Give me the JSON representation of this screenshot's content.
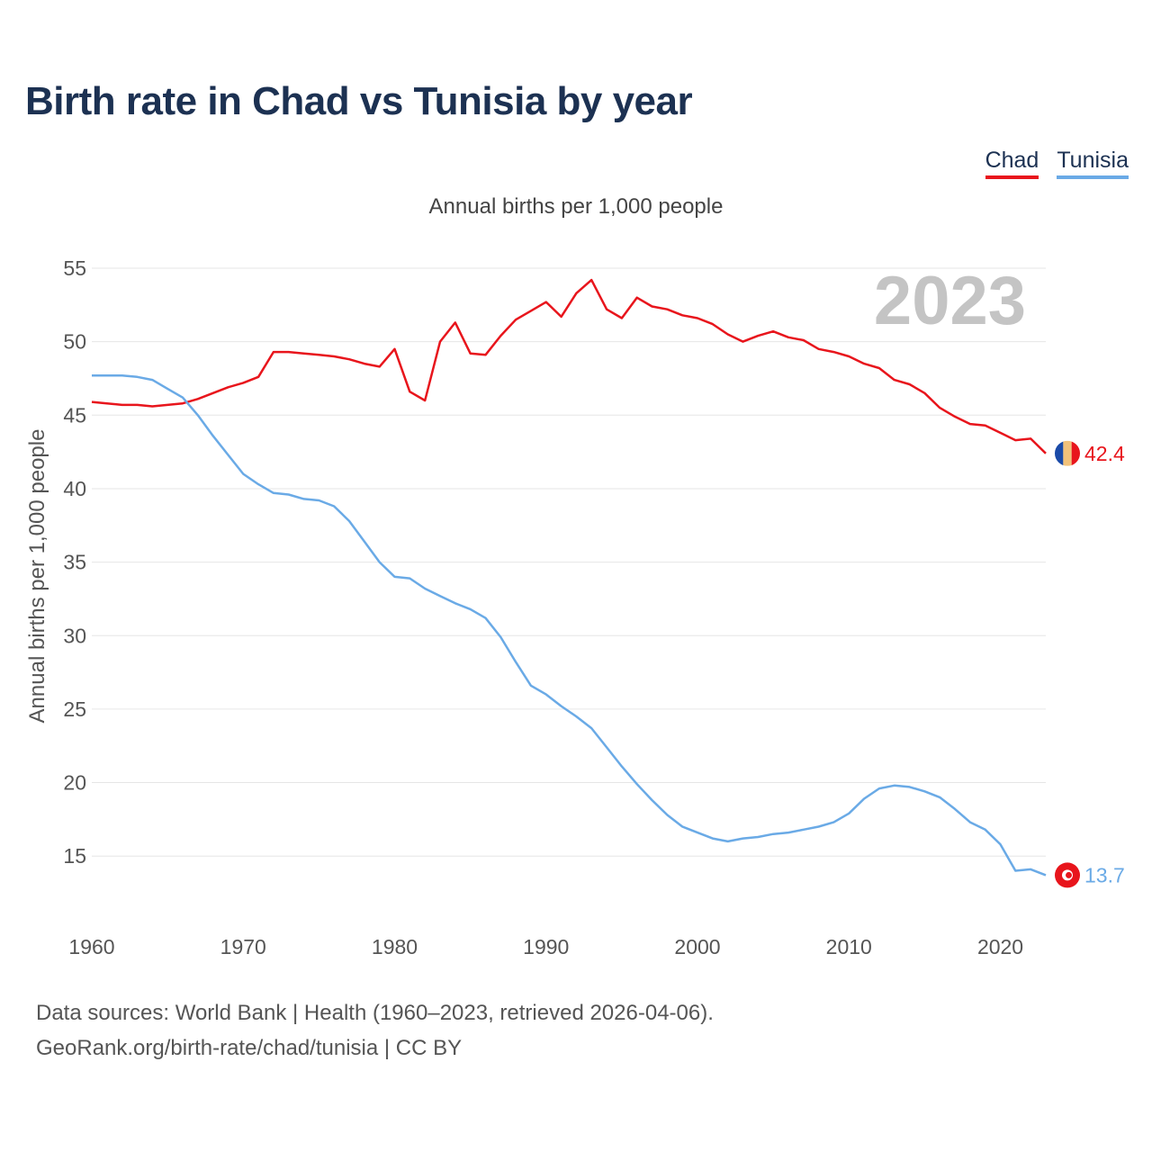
{
  "title": "Birth rate in Chad vs Tunisia by year",
  "subtitle": "Annual births per 1,000 people",
  "year_watermark": "2023",
  "legend": [
    {
      "label": "Chad",
      "color": "#e8151c"
    },
    {
      "label": "Tunisia",
      "color": "#6aaae6"
    }
  ],
  "source": {
    "line1": "Data sources: World Bank | Health (1960–2023, retrieved 2026-04-06).",
    "line2": "GeoRank.org/birth-rate/chad/tunisia | CC BY"
  },
  "chart_data": {
    "type": "line",
    "title": "Birth rate in Chad vs Tunisia by year",
    "ylabel": "Annual births per 1,000 people",
    "xlabel": "",
    "xlim": [
      1960,
      2023
    ],
    "ylim": [
      12,
      56
    ],
    "x_ticks": [
      1960,
      1970,
      1980,
      1990,
      2000,
      2010,
      2020
    ],
    "y_ticks": [
      15,
      20,
      25,
      30,
      35,
      40,
      45,
      50,
      55
    ],
    "grid": true,
    "legend_position": "top-right",
    "x": [
      1960,
      1961,
      1962,
      1963,
      1964,
      1965,
      1966,
      1967,
      1968,
      1969,
      1970,
      1971,
      1972,
      1973,
      1974,
      1975,
      1976,
      1977,
      1978,
      1979,
      1980,
      1981,
      1982,
      1983,
      1984,
      1985,
      1986,
      1987,
      1988,
      1989,
      1990,
      1991,
      1992,
      1993,
      1994,
      1995,
      1996,
      1997,
      1998,
      1999,
      2000,
      2001,
      2002,
      2003,
      2004,
      2005,
      2006,
      2007,
      2008,
      2009,
      2010,
      2011,
      2012,
      2013,
      2014,
      2015,
      2016,
      2017,
      2018,
      2019,
      2020,
      2021,
      2022,
      2023
    ],
    "series": [
      {
        "name": "Chad",
        "color": "#e8151c",
        "end_label": "42.4",
        "values": [
          45.9,
          45.8,
          45.7,
          45.7,
          45.6,
          45.7,
          45.8,
          46.1,
          46.5,
          46.9,
          47.2,
          47.6,
          49.3,
          49.3,
          49.2,
          49.1,
          49.0,
          48.8,
          48.5,
          48.3,
          49.5,
          46.6,
          46.0,
          50.0,
          51.3,
          49.2,
          49.1,
          50.4,
          51.5,
          52.1,
          52.7,
          51.7,
          53.3,
          54.2,
          52.2,
          51.6,
          53.0,
          52.4,
          52.2,
          51.8,
          51.6,
          51.2,
          50.5,
          50.0,
          50.4,
          50.7,
          50.3,
          50.1,
          49.5,
          49.3,
          49.0,
          48.5,
          48.2,
          47.4,
          47.1,
          46.5,
          45.5,
          44.9,
          44.4,
          44.3,
          43.8,
          43.3,
          43.4,
          42.4
        ]
      },
      {
        "name": "Tunisia",
        "color": "#6aaae6",
        "end_label": "13.7",
        "values": [
          47.7,
          47.7,
          47.7,
          47.6,
          47.4,
          46.8,
          46.2,
          45.0,
          43.6,
          42.3,
          41.0,
          40.3,
          39.7,
          39.6,
          39.3,
          39.2,
          38.8,
          37.8,
          36.4,
          35.0,
          34.0,
          33.9,
          33.2,
          32.7,
          32.2,
          31.8,
          31.2,
          29.9,
          28.2,
          26.6,
          26.0,
          25.2,
          24.5,
          23.7,
          22.4,
          21.1,
          19.9,
          18.8,
          17.8,
          17.0,
          16.6,
          16.2,
          16.0,
          16.2,
          16.3,
          16.5,
          16.6,
          16.8,
          17.0,
          17.3,
          17.9,
          18.9,
          19.6,
          19.8,
          19.7,
          19.4,
          19.0,
          18.2,
          17.3,
          16.8,
          15.8,
          14.0,
          14.1,
          13.7
        ]
      }
    ]
  }
}
